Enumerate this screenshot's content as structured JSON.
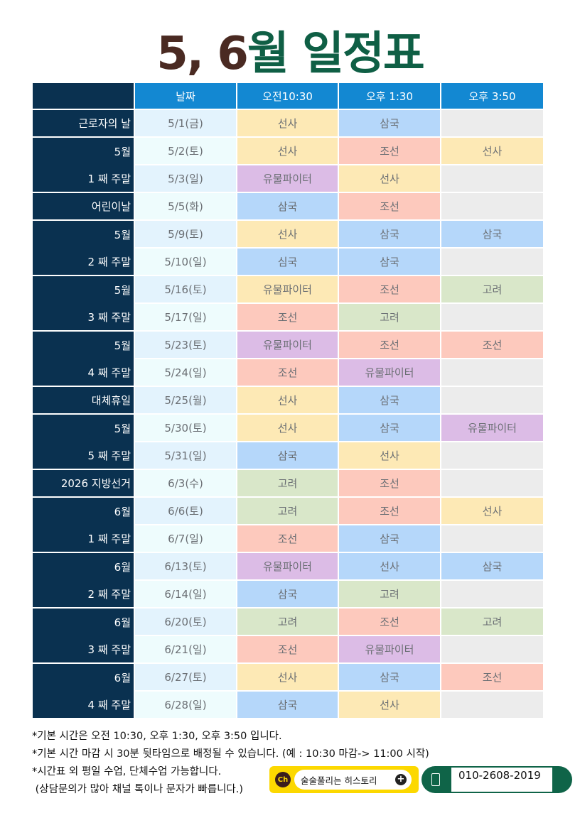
{
  "title": {
    "number_part": "5, 6",
    "text_part": "월 일정표"
  },
  "colors": {
    "title_number": "#4a2a22",
    "title_text": "#0f5f45",
    "label_bg": "#0a3150",
    "header_bg": "#1388d2",
    "선사": "#fde9b5",
    "삼국": "#b5d7fa",
    "조선": "#fdc9bd",
    "고려": "#d9e7c9",
    "유물파이터": "#dcbce6",
    "empty": "#ececec",
    "심국": "#b5d7fa"
  },
  "table": {
    "headers": [
      "",
      "날짜",
      "오전10:30",
      "오후 1:30",
      "오후 3:50"
    ],
    "groups": [
      {
        "label": [
          "근로자의 날"
        ],
        "rows": [
          {
            "date": "5/1(금)",
            "slots": [
              "선사",
              "삼국",
              ""
            ]
          }
        ]
      },
      {
        "label": [
          "5월",
          "1 째 주말"
        ],
        "rows": [
          {
            "date": "5/2(토)",
            "slots": [
              "선사",
              "조선",
              "선사"
            ]
          },
          {
            "date": "5/3(일)",
            "slots": [
              "유물파이터",
              "선사",
              ""
            ]
          }
        ]
      },
      {
        "label": [
          "어린이날"
        ],
        "rows": [
          {
            "date": "5/5(화)",
            "slots": [
              "삼국",
              "조선",
              ""
            ]
          }
        ]
      },
      {
        "label": [
          "5월",
          "2 째 주말"
        ],
        "rows": [
          {
            "date": "5/9(토)",
            "slots": [
              "선사",
              "삼국",
              "삼국"
            ]
          },
          {
            "date": "5/10(일)",
            "slots": [
              "심국",
              "삼국",
              ""
            ]
          }
        ]
      },
      {
        "label": [
          "5월",
          "3 째 주말"
        ],
        "rows": [
          {
            "date": "5/16(토)",
            "slots": [
              "유물파이터",
              "조선",
              "고려"
            ],
            "slot_colors": [
              "선사",
              null,
              null
            ]
          },
          {
            "date": "5/17(일)",
            "slots": [
              "조선",
              "고려",
              ""
            ]
          }
        ]
      },
      {
        "label": [
          "5월",
          "4 째 주말"
        ],
        "rows": [
          {
            "date": "5/23(토)",
            "slots": [
              "유물파이터",
              "조선",
              "조선"
            ]
          },
          {
            "date": "5/24(일)",
            "slots": [
              "조선",
              "유물파이터",
              ""
            ]
          }
        ]
      },
      {
        "label": [
          "대체휴일"
        ],
        "rows": [
          {
            "date": "5/25(월)",
            "slots": [
              "선사",
              "삼국",
              ""
            ]
          }
        ]
      },
      {
        "label": [
          "5월",
          "5 째 주말"
        ],
        "rows": [
          {
            "date": "5/30(토)",
            "slots": [
              "선사",
              "삼국",
              "유물파이터"
            ]
          },
          {
            "date": "5/31(일)",
            "slots": [
              "삼국",
              "선사",
              ""
            ]
          }
        ]
      },
      {
        "label": [
          "2026 지방선거"
        ],
        "rows": [
          {
            "date": "6/3(수)",
            "slots": [
              "고려",
              "조선",
              ""
            ]
          }
        ]
      },
      {
        "label": [
          "6월",
          "1 째 주말"
        ],
        "rows": [
          {
            "date": "6/6(토)",
            "slots": [
              "고려",
              "조선",
              "선사"
            ]
          },
          {
            "date": "6/7(일)",
            "slots": [
              "조선",
              "삼국",
              ""
            ]
          }
        ]
      },
      {
        "label": [
          "6월",
          "2 째 주말"
        ],
        "rows": [
          {
            "date": "6/13(토)",
            "slots": [
              "유물파이터",
              "선사",
              "삼국"
            ],
            "slot_colors": [
              null,
              "삼국",
              null
            ]
          },
          {
            "date": "6/14(일)",
            "slots": [
              "삼국",
              "고려",
              ""
            ]
          }
        ]
      },
      {
        "label": [
          "6월",
          "3 째 주말"
        ],
        "rows": [
          {
            "date": "6/20(토)",
            "slots": [
              "고려",
              "조선",
              "고려"
            ]
          },
          {
            "date": "6/21(일)",
            "slots": [
              "조선",
              "유물파이터",
              ""
            ]
          }
        ]
      },
      {
        "label": [
          "6월",
          "4 째 주말"
        ],
        "rows": [
          {
            "date": "6/27(토)",
            "slots": [
              "선사",
              "삼국",
              "조선"
            ]
          },
          {
            "date": "6/28(일)",
            "slots": [
              "삼국",
              "선사",
              ""
            ]
          }
        ]
      }
    ]
  },
  "notes": [
    "*기본 시간은 오전 10:30, 오후 1:30, 오후 3:50 입니다.",
    "*기본 시간 마감 시 30분 뒷타임으로 배정될 수 있습니다. (예 : 10:30 마감-> 11:00 시작)",
    "*시간표 외 평일 수업, 단체수업 가능합니다.",
    " (상담문의가 많아 채널 톡이나 문자가 빠릅니다.)"
  ],
  "kakao_channel": {
    "badge": "Ch",
    "name": "술술풀리는 히스토리",
    "add": "+"
  },
  "phone": {
    "number": "010-2608-2019"
  }
}
